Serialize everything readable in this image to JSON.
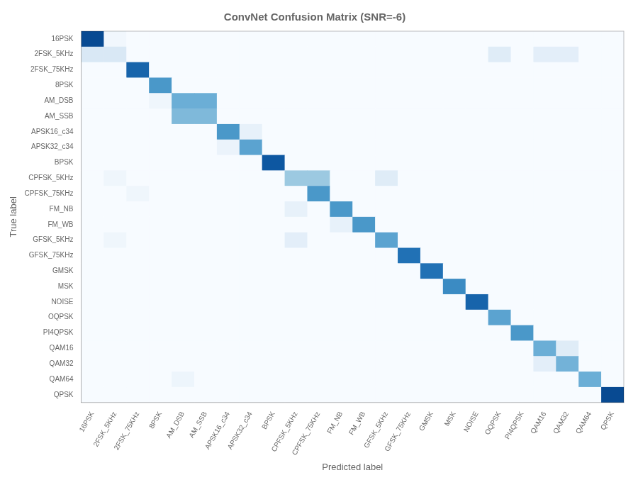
{
  "chart_data": {
    "type": "heatmap",
    "title": "ConvNet Confusion Matrix (SNR=-6)",
    "xlabel": "Predicted label",
    "ylabel": "True label",
    "categories": [
      "16PSK",
      "2FSK_5KHz",
      "2FSK_75KHz",
      "8PSK",
      "AM_DSB",
      "AM_SSB",
      "APSK16_c34",
      "APSK32_c34",
      "BPSK",
      "CPFSK_5KHz",
      "CPFSK_75KHz",
      "FM_NB",
      "FM_WB",
      "GFSK_5KHz",
      "GFSK_75KHz",
      "GMSK",
      "MSK",
      "NOISE",
      "OQPSK",
      "PI4QPSK",
      "QAM16",
      "QAM32",
      "QAM64",
      "QPSK"
    ],
    "matrix": [
      [
        0.9,
        0.03,
        0.0,
        0.0,
        0.0,
        0.0,
        0.0,
        0.0,
        0.0,
        0.0,
        0.0,
        0.0,
        0.0,
        0.0,
        0.0,
        0.0,
        0.0,
        0.0,
        0.0,
        0.0,
        0.0,
        0.0,
        0.0,
        0.0
      ],
      [
        0.15,
        0.15,
        0.0,
        0.0,
        0.0,
        0.0,
        0.0,
        0.0,
        0.0,
        0.0,
        0.0,
        0.0,
        0.0,
        0.0,
        0.0,
        0.0,
        0.0,
        0.0,
        0.12,
        0.0,
        0.1,
        0.1,
        0.0,
        0.0
      ],
      [
        0.0,
        0.0,
        0.8,
        0.0,
        0.0,
        0.0,
        0.0,
        0.0,
        0.0,
        0.0,
        0.0,
        0.0,
        0.0,
        0.0,
        0.0,
        0.0,
        0.0,
        0.0,
        0.0,
        0.0,
        0.0,
        0.0,
        0.0,
        0.0
      ],
      [
        0.0,
        0.0,
        0.0,
        0.6,
        0.0,
        0.0,
        0.0,
        0.0,
        0.0,
        0.0,
        0.0,
        0.0,
        0.0,
        0.0,
        0.0,
        0.0,
        0.0,
        0.0,
        0.0,
        0.0,
        0.0,
        0.0,
        0.0,
        0.0
      ],
      [
        0.0,
        0.0,
        0.0,
        0.04,
        0.5,
        0.5,
        0.0,
        0.0,
        0.0,
        0.0,
        0.0,
        0.0,
        0.0,
        0.0,
        0.0,
        0.0,
        0.0,
        0.0,
        0.0,
        0.0,
        0.0,
        0.0,
        0.0,
        0.0
      ],
      [
        0.0,
        0.0,
        0.0,
        0.0,
        0.45,
        0.45,
        0.0,
        0.0,
        0.0,
        0.0,
        0.0,
        0.0,
        0.0,
        0.0,
        0.0,
        0.0,
        0.0,
        0.0,
        0.0,
        0.0,
        0.0,
        0.0,
        0.0,
        0.0
      ],
      [
        0.0,
        0.0,
        0.0,
        0.0,
        0.0,
        0.0,
        0.6,
        0.08,
        0.0,
        0.0,
        0.0,
        0.0,
        0.0,
        0.0,
        0.0,
        0.0,
        0.0,
        0.0,
        0.0,
        0.0,
        0.0,
        0.0,
        0.0,
        0.0
      ],
      [
        0.0,
        0.0,
        0.0,
        0.0,
        0.0,
        0.0,
        0.06,
        0.55,
        0.0,
        0.0,
        0.0,
        0.0,
        0.0,
        0.0,
        0.0,
        0.0,
        0.0,
        0.0,
        0.0,
        0.0,
        0.0,
        0.0,
        0.0,
        0.0
      ],
      [
        0.0,
        0.0,
        0.0,
        0.0,
        0.0,
        0.0,
        0.0,
        0.0,
        0.85,
        0.0,
        0.0,
        0.0,
        0.0,
        0.0,
        0.0,
        0.0,
        0.0,
        0.0,
        0.0,
        0.0,
        0.0,
        0.0,
        0.0,
        0.0
      ],
      [
        0.0,
        0.04,
        0.0,
        0.0,
        0.0,
        0.0,
        0.0,
        0.0,
        0.0,
        0.38,
        0.38,
        0.0,
        0.0,
        0.12,
        0.0,
        0.0,
        0.0,
        0.0,
        0.0,
        0.0,
        0.0,
        0.0,
        0.0,
        0.0
      ],
      [
        0.0,
        0.0,
        0.04,
        0.0,
        0.0,
        0.0,
        0.0,
        0.0,
        0.0,
        0.0,
        0.6,
        0.0,
        0.0,
        0.0,
        0.0,
        0.0,
        0.0,
        0.0,
        0.0,
        0.0,
        0.0,
        0.0,
        0.0,
        0.0
      ],
      [
        0.0,
        0.0,
        0.0,
        0.0,
        0.0,
        0.0,
        0.0,
        0.0,
        0.0,
        0.08,
        0.0,
        0.6,
        0.0,
        0.0,
        0.0,
        0.0,
        0.0,
        0.0,
        0.0,
        0.0,
        0.0,
        0.0,
        0.0,
        0.0
      ],
      [
        0.0,
        0.0,
        0.0,
        0.0,
        0.0,
        0.0,
        0.0,
        0.0,
        0.0,
        0.0,
        0.0,
        0.08,
        0.6,
        0.0,
        0.0,
        0.0,
        0.0,
        0.0,
        0.0,
        0.0,
        0.0,
        0.0,
        0.0,
        0.0
      ],
      [
        0.0,
        0.04,
        0.0,
        0.0,
        0.0,
        0.0,
        0.0,
        0.0,
        0.0,
        0.1,
        0.0,
        0.0,
        0.0,
        0.55,
        0.0,
        0.0,
        0.0,
        0.0,
        0.0,
        0.0,
        0.0,
        0.0,
        0.0,
        0.0
      ],
      [
        0.0,
        0.0,
        0.0,
        0.0,
        0.0,
        0.0,
        0.0,
        0.0,
        0.0,
        0.0,
        0.0,
        0.0,
        0.0,
        0.0,
        0.75,
        0.0,
        0.0,
        0.0,
        0.0,
        0.0,
        0.0,
        0.0,
        0.0,
        0.0
      ],
      [
        0.0,
        0.0,
        0.0,
        0.0,
        0.0,
        0.0,
        0.0,
        0.0,
        0.0,
        0.0,
        0.0,
        0.0,
        0.0,
        0.0,
        0.0,
        0.75,
        0.0,
        0.0,
        0.0,
        0.0,
        0.0,
        0.0,
        0.0,
        0.0
      ],
      [
        0.0,
        0.0,
        0.0,
        0.0,
        0.0,
        0.0,
        0.0,
        0.0,
        0.0,
        0.0,
        0.0,
        0.0,
        0.0,
        0.0,
        0.0,
        0.0,
        0.65,
        0.0,
        0.0,
        0.0,
        0.0,
        0.0,
        0.0,
        0.0
      ],
      [
        0.0,
        0.0,
        0.0,
        0.0,
        0.0,
        0.0,
        0.0,
        0.0,
        0.0,
        0.0,
        0.0,
        0.0,
        0.0,
        0.0,
        0.0,
        0.0,
        0.0,
        0.8,
        0.0,
        0.0,
        0.0,
        0.0,
        0.0,
        0.0
      ],
      [
        0.0,
        0.0,
        0.0,
        0.0,
        0.0,
        0.0,
        0.0,
        0.0,
        0.0,
        0.0,
        0.0,
        0.0,
        0.0,
        0.0,
        0.0,
        0.0,
        0.0,
        0.0,
        0.55,
        0.0,
        0.0,
        0.0,
        0.0,
        0.0
      ],
      [
        0.0,
        0.0,
        0.0,
        0.0,
        0.0,
        0.0,
        0.0,
        0.0,
        0.0,
        0.0,
        0.0,
        0.0,
        0.0,
        0.0,
        0.0,
        0.0,
        0.0,
        0.0,
        0.0,
        0.6,
        0.0,
        0.0,
        0.0,
        0.0
      ],
      [
        0.0,
        0.0,
        0.0,
        0.0,
        0.0,
        0.0,
        0.0,
        0.0,
        0.0,
        0.0,
        0.0,
        0.0,
        0.0,
        0.0,
        0.0,
        0.0,
        0.0,
        0.0,
        0.0,
        0.0,
        0.5,
        0.12,
        0.0,
        0.0
      ],
      [
        0.0,
        0.0,
        0.0,
        0.0,
        0.0,
        0.0,
        0.0,
        0.0,
        0.0,
        0.0,
        0.0,
        0.0,
        0.0,
        0.0,
        0.0,
        0.0,
        0.0,
        0.0,
        0.0,
        0.0,
        0.1,
        0.48,
        0.0,
        0.0
      ],
      [
        0.0,
        0.0,
        0.0,
        0.0,
        0.05,
        0.0,
        0.0,
        0.0,
        0.0,
        0.0,
        0.0,
        0.0,
        0.0,
        0.0,
        0.0,
        0.0,
        0.0,
        0.0,
        0.0,
        0.0,
        0.0,
        0.0,
        0.5,
        0.0
      ],
      [
        0.0,
        0.0,
        0.0,
        0.0,
        0.0,
        0.0,
        0.0,
        0.0,
        0.0,
        0.0,
        0.0,
        0.0,
        0.0,
        0.0,
        0.0,
        0.0,
        0.0,
        0.0,
        0.0,
        0.0,
        0.0,
        0.0,
        0.0,
        0.9
      ]
    ],
    "color_range": [
      0.0,
      1.0
    ],
    "grid": false
  }
}
